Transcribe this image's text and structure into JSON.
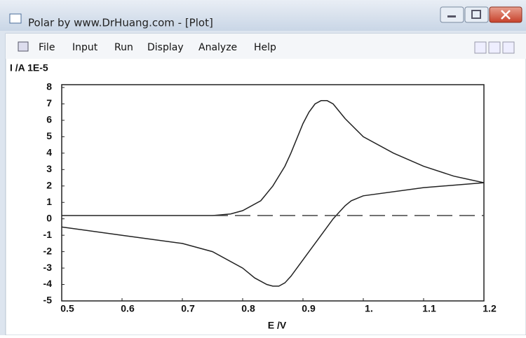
{
  "window": {
    "title": "Polar by www.DrHuang.com - [Plot]",
    "menu": [
      "File",
      "Input",
      "Run",
      "Display",
      "Analyze",
      "Help"
    ]
  },
  "chart_data": {
    "type": "line",
    "ylabel": "I /A  1E-5",
    "xlabel": "E /V",
    "xlim": [
      0.5,
      1.2
    ],
    "ylim": [
      -5,
      8
    ],
    "xticks": [
      0.5,
      0.6,
      0.7,
      0.8,
      0.9,
      {
        "value": 1,
        "label": "1."
      },
      1.1,
      1.2
    ],
    "yticks": [
      -5,
      -4,
      -3,
      -2,
      -1,
      0,
      1,
      2,
      3,
      4,
      5,
      6,
      7,
      8
    ],
    "series": [
      {
        "color": "#222222",
        "dash": false,
        "x": [
          0.5,
          0.6,
          0.7,
          0.75,
          0.78,
          0.8,
          0.83,
          0.85,
          0.87,
          0.88,
          0.9,
          0.91,
          0.92,
          0.93,
          0.94,
          0.95,
          0.97,
          1.0,
          1.05,
          1.1,
          1.15,
          1.2
        ],
        "values": [
          0.2,
          0.2,
          0.2,
          0.2,
          0.3,
          0.5,
          1.1,
          2.0,
          3.2,
          4.0,
          5.8,
          6.5,
          7.0,
          7.2,
          7.2,
          7.0,
          6.1,
          5.0,
          4.0,
          3.2,
          2.6,
          2.2
        ]
      },
      {
        "color": "#222222",
        "dash": false,
        "x": [
          1.2,
          1.1,
          1.0,
          0.98,
          0.97,
          0.96,
          0.95,
          0.94,
          0.93,
          0.91,
          0.9,
          0.88,
          0.87,
          0.86,
          0.85,
          0.84,
          0.82,
          0.8,
          0.75,
          0.7,
          0.6,
          0.5
        ],
        "values": [
          2.2,
          1.9,
          1.4,
          1.1,
          0.8,
          0.4,
          0.0,
          -0.5,
          -1.0,
          -2.0,
          -2.5,
          -3.5,
          -3.9,
          -4.1,
          -4.1,
          -4.0,
          -3.6,
          -3.0,
          -2.0,
          -1.5,
          -1.0,
          -0.5
        ]
      },
      {
        "color": "#444444",
        "dash": true,
        "x": [
          0.75,
          1.2
        ],
        "values": [
          0.2,
          0.2
        ]
      }
    ]
  }
}
